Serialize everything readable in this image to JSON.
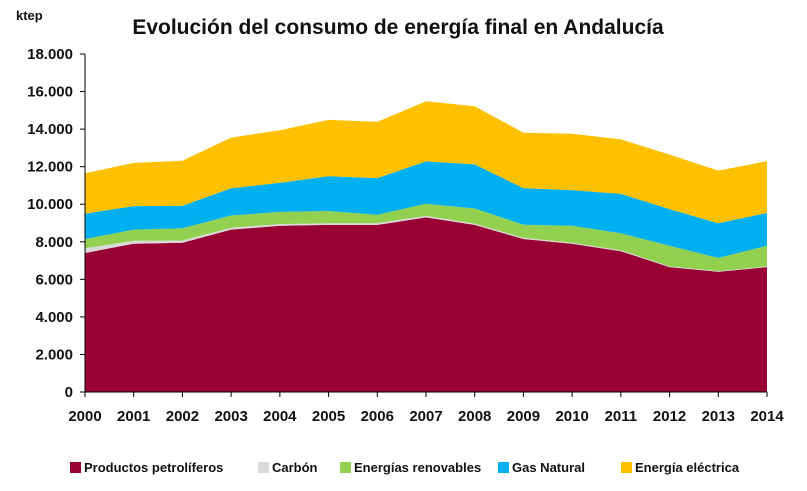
{
  "chart_data": {
    "type": "area",
    "title": "Evolución del consumo de energía final en Andalucía",
    "ylabel": "ktep",
    "xlabel": "",
    "ylim": [
      0,
      18000
    ],
    "yticks": [
      0,
      2000,
      4000,
      6000,
      8000,
      10000,
      12000,
      14000,
      16000,
      18000
    ],
    "ytick_labels": [
      "0",
      "2.000",
      "4.000",
      "6.000",
      "8.000",
      "10.000",
      "12.000",
      "14.000",
      "16.000",
      "18.000"
    ],
    "categories": [
      "2000",
      "2001",
      "2002",
      "2003",
      "2004",
      "2005",
      "2006",
      "2007",
      "2008",
      "2009",
      "2010",
      "2011",
      "2012",
      "2013",
      "2014"
    ],
    "stacked": true,
    "grid": false,
    "legend_position": "bottom",
    "series": [
      {
        "name": "Productos petrolíferos",
        "color": "#990033",
        "values": [
          7400,
          7900,
          7950,
          8650,
          8850,
          8900,
          8900,
          9300,
          8900,
          8150,
          7900,
          7500,
          6650,
          6400,
          6650
        ]
      },
      {
        "name": "Carbón",
        "color": "#d9d9d9",
        "values": [
          250,
          150,
          120,
          100,
          90,
          90,
          90,
          80,
          70,
          60,
          50,
          50,
          40,
          40,
          40
        ]
      },
      {
        "name": "Energías renovables",
        "color": "#92d050",
        "values": [
          500,
          600,
          650,
          650,
          650,
          650,
          450,
          650,
          800,
          700,
          900,
          900,
          1100,
          700,
          1100
        ]
      },
      {
        "name": "Gas Natural",
        "color": "#00b0f0",
        "values": [
          1350,
          1250,
          1200,
          1450,
          1550,
          1850,
          1950,
          2250,
          2350,
          1950,
          1900,
          2100,
          1950,
          1850,
          1750
        ]
      },
      {
        "name": "Energía eléctrica",
        "color": "#ffc000",
        "values": [
          2150,
          2300,
          2400,
          2700,
          2800,
          3000,
          3000,
          3200,
          3100,
          2950,
          3000,
          2900,
          2900,
          2800,
          2750
        ]
      }
    ]
  }
}
